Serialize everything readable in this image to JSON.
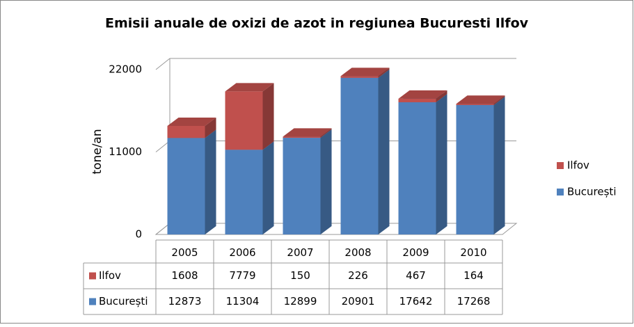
{
  "chart_data": {
    "type": "bar3d-stacked",
    "title": "Emisii anuale de oxizi de azot in regiunea Bucuresti Ilfov",
    "y_label": "tone/an",
    "categories": [
      "2005",
      "2006",
      "2007",
      "2008",
      "2009",
      "2010"
    ],
    "series": [
      {
        "name": "București",
        "color": "#4f81bd",
        "values": [
          12873,
          11304,
          12899,
          20901,
          17642,
          17268
        ]
      },
      {
        "name": "Ilfov",
        "color": "#c0504d",
        "values": [
          1608,
          7779,
          150,
          226,
          467,
          164
        ]
      }
    ],
    "ylim": [
      0,
      22000
    ],
    "yticks": [
      0,
      11000,
      22000
    ],
    "grid": true,
    "legend": "right",
    "data_table": true
  }
}
